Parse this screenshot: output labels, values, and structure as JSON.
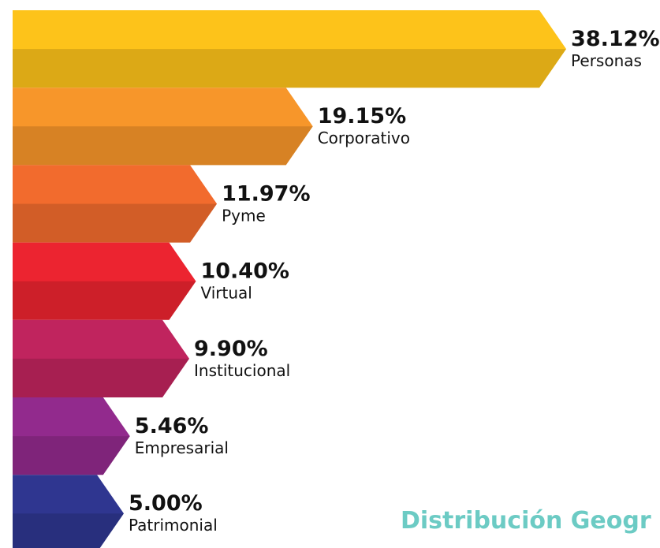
{
  "chart_data": {
    "type": "bar",
    "orientation": "horizontal",
    "categories": [
      "Personas",
      "Corporativo",
      "Pyme",
      "Virtual",
      "Institucional",
      "Empresarial",
      "Patrimonial"
    ],
    "values": [
      38.12,
      19.15,
      11.97,
      10.4,
      9.9,
      5.46,
      5.0
    ],
    "value_labels": [
      "38.12%",
      "19.15%",
      "11.97%",
      "10.40%",
      "9.90%",
      "5.46%",
      "5.00%"
    ],
    "colors": [
      "#fdc31a",
      "#f7962a",
      "#f26b2d",
      "#ec2430",
      "#c0245e",
      "#922a8d",
      "#2f3690"
    ],
    "annotation": "Distribución Geogr"
  }
}
